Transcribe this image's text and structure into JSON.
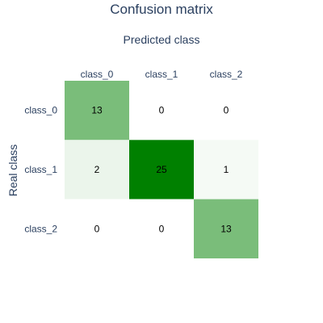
{
  "chart_data": {
    "type": "heatmap",
    "title": "Confusion matrix",
    "xlabel": "Predicted class",
    "ylabel": "Real class",
    "x_categories": [
      "class_0",
      "class_1",
      "class_2"
    ],
    "y_categories": [
      "class_0",
      "class_1",
      "class_2"
    ],
    "values": [
      [
        13,
        0,
        0
      ],
      [
        2,
        25,
        1
      ],
      [
        0,
        0,
        13
      ]
    ],
    "zrange": [
      0,
      25
    ],
    "colorscale": [
      "#ffffff",
      "#008000"
    ],
    "show_colorbar": false
  }
}
